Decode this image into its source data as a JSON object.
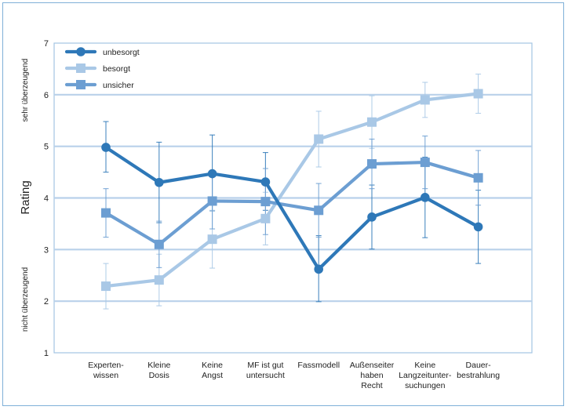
{
  "chart_data": {
    "type": "line",
    "ylabel": "Rating",
    "ylim": [
      1,
      7
    ],
    "yticks": [
      1,
      2,
      3,
      4,
      5,
      6,
      7
    ],
    "annotation_top": "sehr überzeugend",
    "annotation_bottom": "nicht überzeugend",
    "categories": [
      [
        "Experten-",
        "wissen"
      ],
      [
        "Kleine",
        "Dosis"
      ],
      [
        "Keine",
        "Angst"
      ],
      [
        "MF ist gut",
        "untersucht"
      ],
      [
        "Fassmodell"
      ],
      [
        "Außenseiter",
        "haben",
        "Recht"
      ],
      [
        "Keine",
        "Langzeitunter-",
        "suchungen"
      ],
      [
        "Dauer-",
        "bestrahlung"
      ]
    ],
    "grid": true,
    "legend_position": "top-left",
    "series": [
      {
        "name": "unbesorgt",
        "color": "#2e78b8",
        "marker": "circle",
        "values": [
          4.98,
          4.3,
          4.47,
          4.31,
          2.62,
          3.63,
          4.01,
          3.44
        ],
        "err_low": [
          4.5,
          3.52,
          3.75,
          3.76,
          1.99,
          3.01,
          3.23,
          2.73
        ],
        "err_high": [
          5.48,
          5.08,
          5.22,
          4.88,
          3.27,
          4.25,
          4.79,
          4.15
        ]
      },
      {
        "name": "besorgt",
        "color": "#a9c8e6",
        "marker": "square",
        "values": [
          2.29,
          2.41,
          3.2,
          3.6,
          5.14,
          5.47,
          5.9,
          6.02
        ],
        "err_low": [
          1.85,
          1.91,
          2.64,
          3.09,
          4.6,
          4.96,
          5.56,
          5.64
        ],
        "err_high": [
          2.73,
          2.91,
          3.76,
          4.11,
          5.68,
          5.98,
          6.24,
          6.4
        ]
      },
      {
        "name": "unsicher",
        "color": "#6c9ed2",
        "marker": "square",
        "values": [
          3.71,
          3.1,
          3.94,
          3.93,
          3.76,
          4.66,
          4.69,
          4.39
        ],
        "err_low": [
          3.24,
          2.65,
          3.4,
          3.29,
          3.24,
          4.18,
          4.18,
          3.86
        ],
        "err_high": [
          4.18,
          3.55,
          4.48,
          4.57,
          4.28,
          5.14,
          5.2,
          4.92
        ]
      }
    ]
  }
}
